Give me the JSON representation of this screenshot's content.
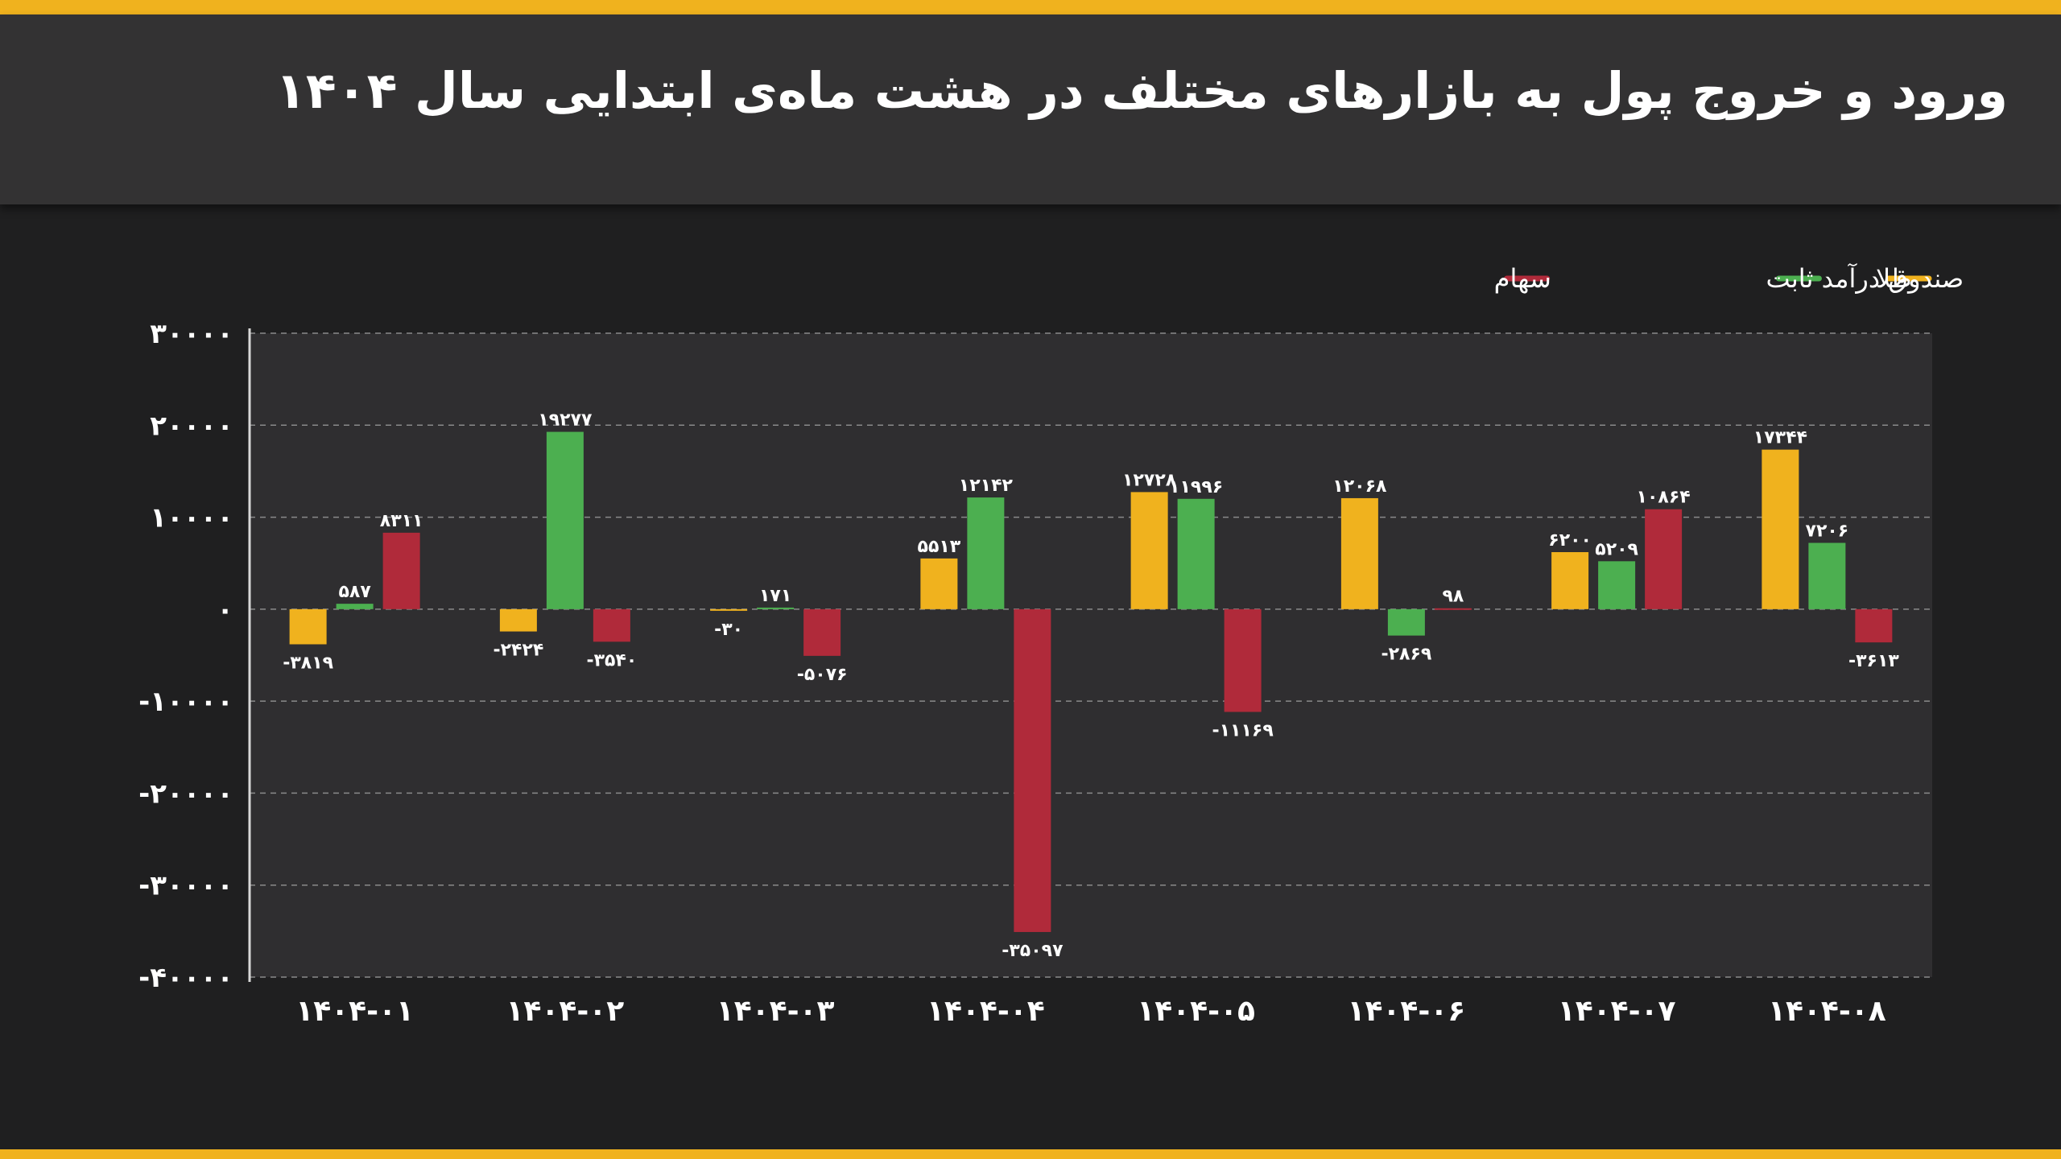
{
  "title": "ورود و خروج پول به بازارهای مختلف در هشت ماه‌ی ابتدایی سال ۱۴۰۴",
  "colors": {
    "gold": "#f0b21e",
    "fixed_income": "#4caf50",
    "stocks": "#b02a3a",
    "plot_bg": "#2f2e30",
    "page_bg": "#1f1f20",
    "grid": "#8a8a8a",
    "text": "#ffffff"
  },
  "chart_data": {
    "type": "bar",
    "categories": [
      "۱۴۰۴-۰۱",
      "۱۴۰۴-۰۲",
      "۱۴۰۴-۰۳",
      "۱۴۰۴-۰۴",
      "۱۴۰۴-۰۵",
      "۱۴۰۴-۰۶",
      "۱۴۰۴-۰۷",
      "۱۴۰۴-۰۸"
    ],
    "series": [
      {
        "name": "طلا",
        "color_key": "gold",
        "values": [
          -3819,
          -2424,
          -30,
          5513,
          12728,
          12068,
          6200,
          17344
        ],
        "labels": [
          "-۳۸۱۹",
          "-۲۴۲۴",
          "-۳۰",
          "۵۵۱۳",
          "۱۲۷۲۸",
          "۱۲۰۶۸",
          "۶۲۰۰",
          "۱۷۳۴۴"
        ]
      },
      {
        "name": "صندوق درآمد ثابت",
        "color_key": "fixed_income",
        "values": [
          587,
          19277,
          171,
          12142,
          11996,
          -2869,
          5209,
          7206
        ],
        "labels": [
          "۵۸۷",
          "۱۹۲۷۷",
          "۱۷۱",
          "۱۲۱۴۲",
          "۱۱۹۹۶",
          "-۲۸۶۹",
          "۵۲۰۹",
          "۷۲۰۶"
        ]
      },
      {
        "name": "سهام",
        "color_key": "stocks",
        "values": [
          8311,
          -3540,
          -5076,
          -35097,
          -11169,
          98,
          10864,
          -3613
        ],
        "labels": [
          "۸۳۱۱",
          "-۳۵۴۰",
          "-۵۰۷۶",
          "-۳۵۰۹۷",
          "-۱۱۱۶۹",
          "۹۸",
          "۱۰۸۶۴",
          "-۳۶۱۳"
        ]
      }
    ],
    "ylim": [
      -40000,
      30000
    ],
    "yticks": [
      30000,
      20000,
      10000,
      0,
      -10000,
      -20000,
      -30000,
      -40000
    ],
    "ytick_labels": [
      "۳۰۰۰۰",
      "۲۰۰۰۰",
      "۱۰۰۰۰",
      "۰",
      "-۱۰۰۰۰",
      "-۲۰۰۰۰",
      "-۳۰۰۰۰",
      "-۴۰۰۰۰"
    ],
    "grid": true,
    "legend_position": "top-right"
  }
}
